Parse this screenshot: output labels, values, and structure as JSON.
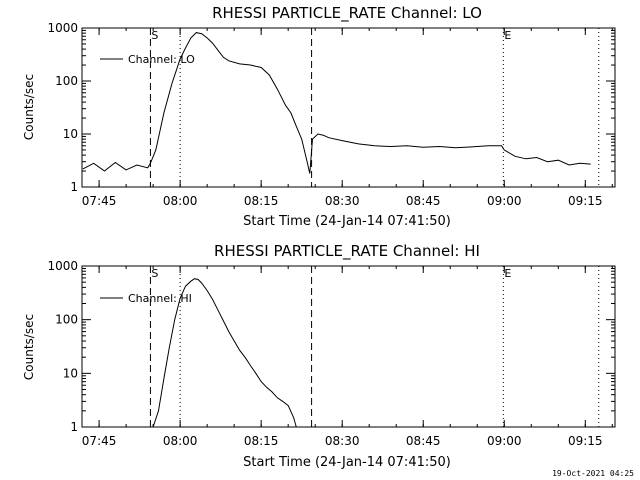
{
  "footer": {
    "stamp": "19-Oct-2021 04:25"
  },
  "chart_data": [
    {
      "type": "line",
      "title": "RHESSI PARTICLE_RATE Channel: LO",
      "xlabel": "Start Time (24-Jan-14 07:41:50)",
      "ylabel": "Counts/sec",
      "yscale": "log",
      "ylim": [
        1,
        1000
      ],
      "xlim": [
        "07:41:50",
        "09:20:30"
      ],
      "xticks": [
        "07:45",
        "08:00",
        "08:15",
        "08:30",
        "08:45",
        "09:00",
        "09:15"
      ],
      "yticks": [
        "1",
        "10",
        "100",
        "1000"
      ],
      "legend": {
        "label": "Channel: LO",
        "placement": "top-left"
      },
      "markers": [
        {
          "label": "S",
          "time": "07:54:30",
          "style": "dashed"
        },
        {
          "label": "",
          "time": "08:00:00",
          "style": "dotted"
        },
        {
          "label": "",
          "time": "08:24:20",
          "style": "dashed"
        },
        {
          "label": "E",
          "time": "08:59:50",
          "style": "dotted"
        },
        {
          "label": "",
          "time": "09:17:30",
          "style": "dotted"
        }
      ],
      "series": [
        {
          "x": [
            "07:42:00",
            "07:44:00",
            "07:46:00",
            "07:48:00",
            "07:50:00",
            "07:52:00",
            "07:54:00",
            "07:54:30",
            "07:55:30",
            "07:57:00",
            "07:58:30",
            "08:00:00",
            "08:01:00",
            "08:02:00",
            "08:03:00",
            "08:04:00",
            "08:05:00",
            "08:06:00",
            "08:07:00",
            "08:08:00",
            "08:09:00",
            "08:11:00",
            "08:13:00",
            "08:15:00",
            "08:16:30",
            "08:18:00",
            "08:19:30",
            "08:20:30",
            "08:21:30",
            "08:22:30",
            "08:23:30",
            "08:24:00",
            "08:24:30",
            "08:25:30",
            "08:26:30",
            "08:27:30",
            "08:30:00",
            "08:33:00",
            "08:36:00",
            "08:39:00",
            "08:42:00",
            "08:45:00",
            "08:48:00",
            "08:51:00",
            "08:54:00",
            "08:57:00",
            "08:59:30",
            "09:00:00",
            "09:02:00",
            "09:04:00",
            "09:06:00",
            "09:08:00",
            "09:10:00",
            "09:12:00",
            "09:14:00",
            "09:16:00"
          ],
          "y": [
            2.2,
            2.8,
            2.0,
            2.9,
            2.1,
            2.6,
            2.3,
            2.8,
            5.0,
            25,
            90,
            260,
            420,
            650,
            820,
            780,
            650,
            520,
            380,
            280,
            240,
            210,
            200,
            180,
            130,
            70,
            35,
            25,
            14,
            8,
            3,
            1.8,
            8,
            10,
            9.5,
            8.5,
            7.5,
            6.5,
            6.0,
            5.8,
            6.0,
            5.6,
            5.8,
            5.5,
            5.7,
            6.0,
            6.0,
            5.0,
            3.8,
            3.4,
            3.6,
            3.0,
            3.2,
            2.6,
            2.8,
            2.7
          ]
        }
      ]
    },
    {
      "type": "line",
      "title": "RHESSI PARTICLE_RATE Channel: HI",
      "xlabel": "Start Time (24-Jan-14 07:41:50)",
      "ylabel": "Counts/sec",
      "yscale": "log",
      "ylim": [
        1,
        1000
      ],
      "xlim": [
        "07:41:50",
        "09:20:30"
      ],
      "xticks": [
        "07:45",
        "08:00",
        "08:15",
        "08:30",
        "08:45",
        "09:00",
        "09:15"
      ],
      "yticks": [
        "1",
        "10",
        "100",
        "1000"
      ],
      "legend": {
        "label": "Channel: HI",
        "placement": "top-left"
      },
      "markers": [
        {
          "label": "S",
          "time": "07:54:30",
          "style": "dashed"
        },
        {
          "label": "",
          "time": "08:00:00",
          "style": "dotted"
        },
        {
          "label": "",
          "time": "08:24:20",
          "style": "dashed"
        },
        {
          "label": "E",
          "time": "08:59:50",
          "style": "dotted"
        },
        {
          "label": "",
          "time": "09:17:30",
          "style": "dotted"
        }
      ],
      "series": [
        {
          "x": [
            "07:55:00",
            "07:56:00",
            "07:57:00",
            "07:58:00",
            "07:59:00",
            "08:00:00",
            "08:01:00",
            "08:02:00",
            "08:02:40",
            "08:03:20",
            "08:04:00",
            "08:05:00",
            "08:06:00",
            "08:07:00",
            "08:08:00",
            "08:09:00",
            "08:10:00",
            "08:11:00",
            "08:12:00",
            "08:13:00",
            "08:14:00",
            "08:15:00",
            "08:16:00",
            "08:17:00",
            "08:18:00",
            "08:19:00",
            "08:20:00",
            "08:21:00",
            "08:21:30"
          ],
          "y": [
            1.0,
            2.0,
            8,
            30,
            100,
            250,
            420,
            520,
            580,
            560,
            480,
            350,
            240,
            150,
            95,
            60,
            40,
            27,
            20,
            14,
            10,
            7,
            5.5,
            4.5,
            3.5,
            3.0,
            2.5,
            1.5,
            1.0
          ]
        }
      ]
    }
  ]
}
